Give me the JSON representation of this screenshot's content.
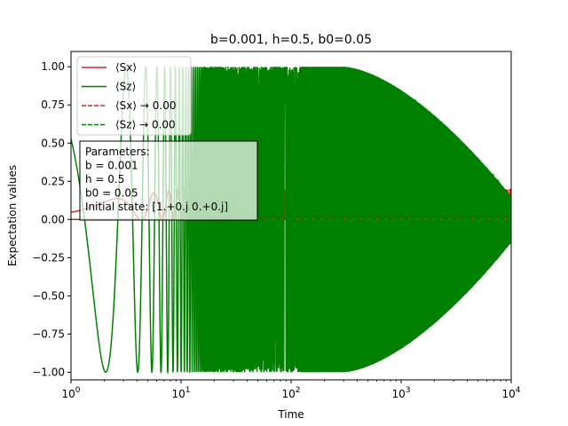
{
  "chart_data": {
    "type": "line",
    "title": "b=0.001, h=0.5, b0=0.05",
    "xlabel": "Time",
    "ylabel": "Expectation values",
    "xscale": "log",
    "xlim": [
      1,
      10000
    ],
    "ylim": [
      -1.05,
      1.1
    ],
    "x_ticks": [
      {
        "value": 1,
        "base": "10",
        "exp": "0"
      },
      {
        "value": 10,
        "base": "10",
        "exp": "1"
      },
      {
        "value": 100,
        "base": "10",
        "exp": "2"
      },
      {
        "value": 1000,
        "base": "10",
        "exp": "3"
      },
      {
        "value": 10000,
        "base": "10",
        "exp": "4"
      }
    ],
    "y_ticks": [
      {
        "value": -1.0,
        "label": "−1.00"
      },
      {
        "value": -0.75,
        "label": "−0.75"
      },
      {
        "value": -0.5,
        "label": "−0.50"
      },
      {
        "value": -0.25,
        "label": "−0.25"
      },
      {
        "value": 0.0,
        "label": "0.00"
      },
      {
        "value": 0.25,
        "label": "0.25"
      },
      {
        "value": 0.5,
        "label": "0.50"
      },
      {
        "value": 0.75,
        "label": "0.75"
      },
      {
        "value": 1.0,
        "label": "1.00"
      }
    ],
    "grid": false,
    "legend_position": "upper-left",
    "series": [
      {
        "name": "⟨Sx⟩",
        "color": "#d62728",
        "style": "solid",
        "role": "sx"
      },
      {
        "name": "⟨Sz⟩",
        "color": "#008000",
        "style": "solid",
        "role": "sz"
      },
      {
        "name": "⟨Sx⟩ → 0.00",
        "color": "#d62728",
        "style": "dashed",
        "role": "sx_limit",
        "value": 0.0
      },
      {
        "name": "⟨Sz⟩ → 0.00",
        "color": "#008000",
        "style": "dashed",
        "role": "sz_limit",
        "value": 0.0
      }
    ],
    "model": {
      "sz_start": 0.53,
      "sx_start": 0.05,
      "sx_amplitude": 0.2,
      "sz_amplitude_start": 1.0,
      "sz_amplitude_end": 0.15,
      "envelope_start_time": 300
    },
    "annotation": {
      "lines": [
        "Parameters:",
        "b = 0.001",
        "h = 0.5",
        "b0 = 0.05",
        "Initial state: [1.+0.j 0.+0.j]"
      ]
    }
  }
}
